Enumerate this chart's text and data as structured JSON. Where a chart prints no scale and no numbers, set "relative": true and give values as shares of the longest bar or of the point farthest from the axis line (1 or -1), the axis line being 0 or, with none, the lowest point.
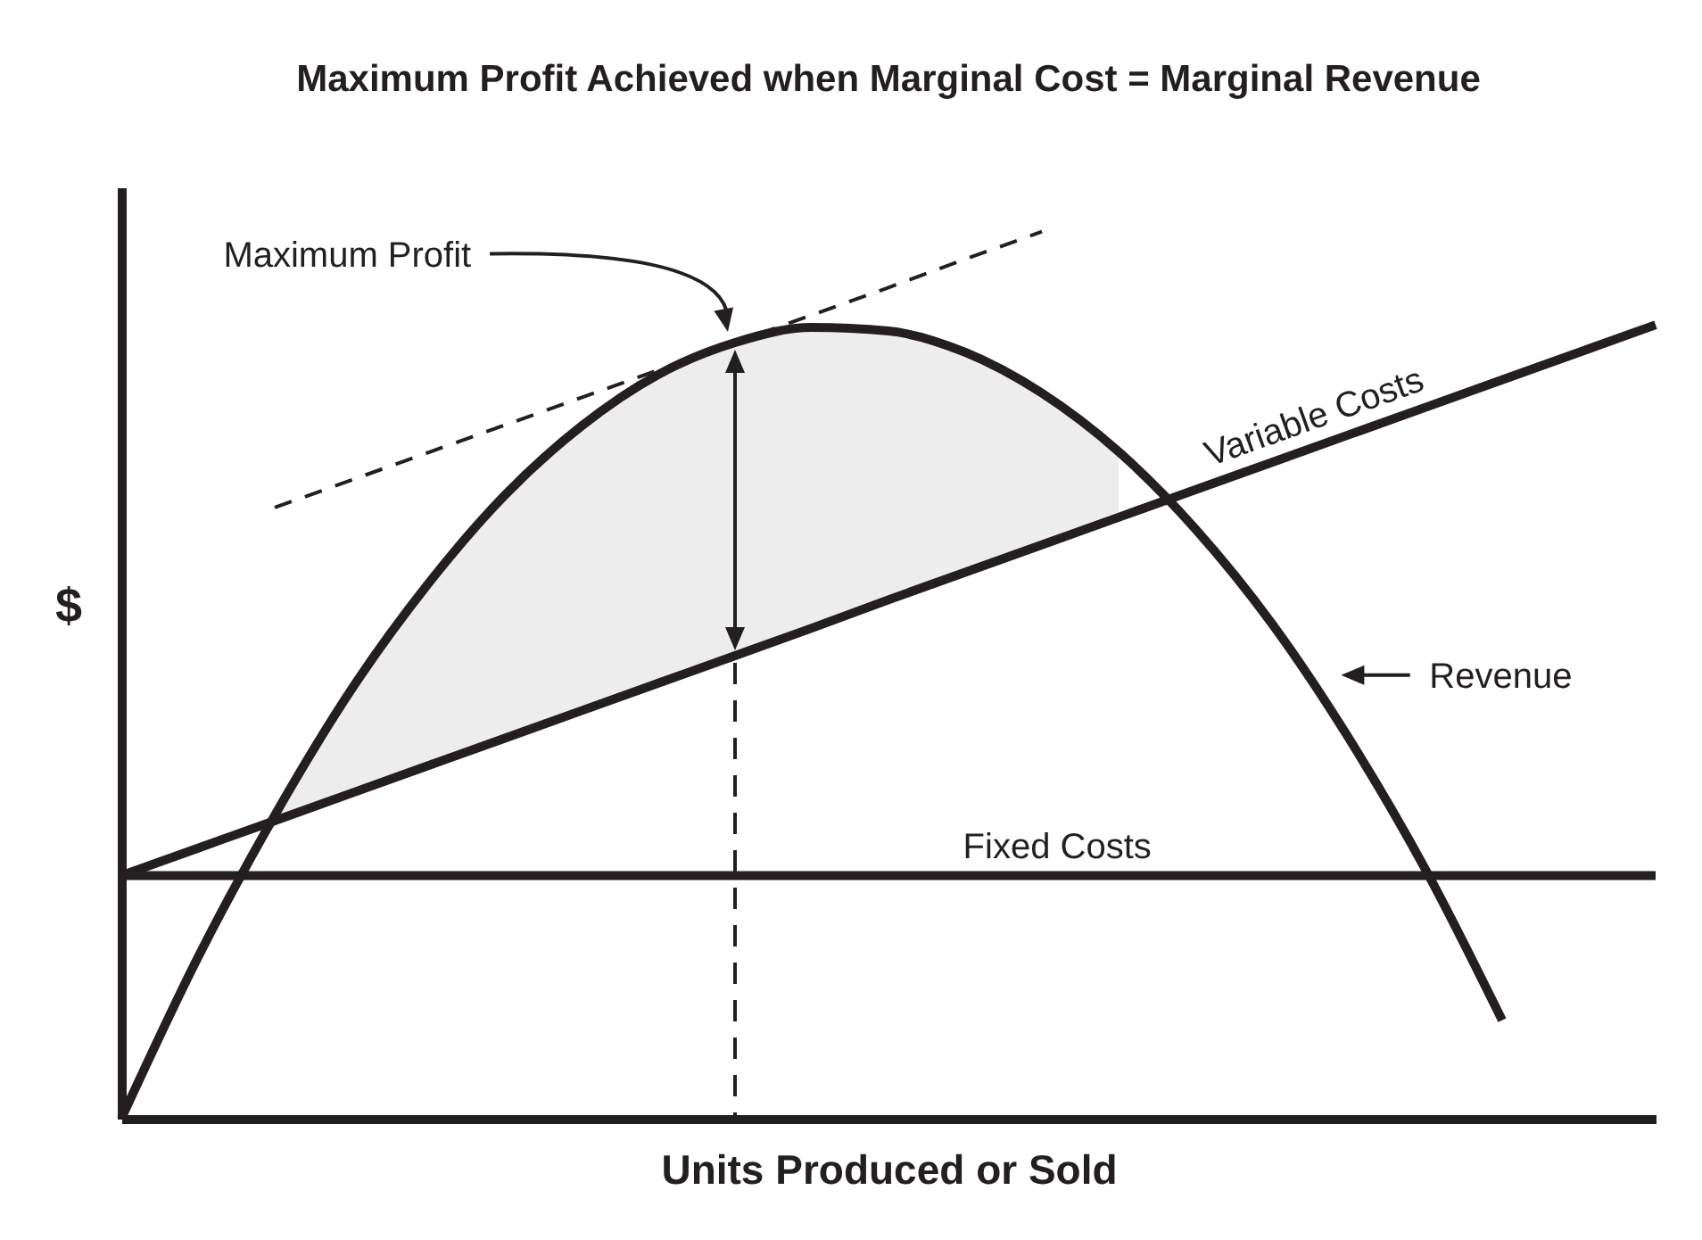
{
  "chart_data": {
    "type": "line",
    "title": "Maximum Profit Achieved when Marginal Cost = Marginal Revenue",
    "xlabel": "Units Produced or Sold",
    "ylabel": "$",
    "relative": true,
    "categories": [
      null,
      null,
      null,
      null,
      null,
      null,
      null,
      null,
      null,
      null,
      null,
      null,
      null,
      null,
      null,
      null,
      null,
      null,
      null,
      null,
      null
    ],
    "series": [
      {
        "name": "Revenue",
        "color": "#231f20",
        "values": [
          0,
          0.182,
          0.342,
          0.484,
          0.603,
          0.703,
          0.781,
          0.839,
          0.875,
          0.892,
          0.888,
          0.864,
          0.818,
          0.752,
          0.665,
          0.558,
          0.429,
          0.281,
          0.111,
          null,
          null
        ],
        "lower": [
          null,
          null,
          0.336,
          0.367,
          0.398,
          0.429,
          0.46,
          0.491,
          0.522,
          0.553,
          0.585,
          0.616,
          0.647,
          0.678,
          null,
          null,
          null,
          null,
          null,
          null,
          null
        ],
        "upper": [
          null,
          null,
          0.342,
          0.484,
          0.603,
          0.703,
          0.781,
          0.839,
          0.875,
          0.892,
          0.888,
          0.864,
          0.818,
          0.752,
          null,
          null,
          null,
          null,
          null,
          null,
          null
        ]
      },
      {
        "name": "Variable Costs",
        "color": "#231f20",
        "values": [
          0.274,
          0.305,
          0.336,
          0.367,
          0.398,
          0.429,
          0.46,
          0.491,
          0.522,
          0.553,
          0.585,
          0.616,
          0.647,
          0.678,
          0.709,
          0.74,
          0.771,
          0.802,
          0.833,
          0.864,
          0.895
        ]
      },
      {
        "name": "Fixed Costs",
        "color": "#231f20",
        "values": [
          0.274,
          0.274,
          0.274,
          0.274,
          0.274,
          0.274,
          0.274,
          0.274,
          0.274,
          0.274,
          0.274,
          0.274,
          0.274,
          0.274,
          0.274,
          0.274,
          0.274,
          0.274,
          0.274,
          0.274,
          0.274
        ]
      },
      {
        "color": "#231f20",
        "line_style": "dashed",
        "values": [
          null,
          null,
          0.689,
          0.72,
          0.751,
          0.782,
          0.813,
          0.844,
          0.875,
          0.906,
          0.937,
          0.969,
          1,
          null,
          null,
          null,
          null,
          null,
          null,
          null,
          null
        ]
      }
    ],
    "annotations": [
      "Maximum Profit"
    ]
  }
}
